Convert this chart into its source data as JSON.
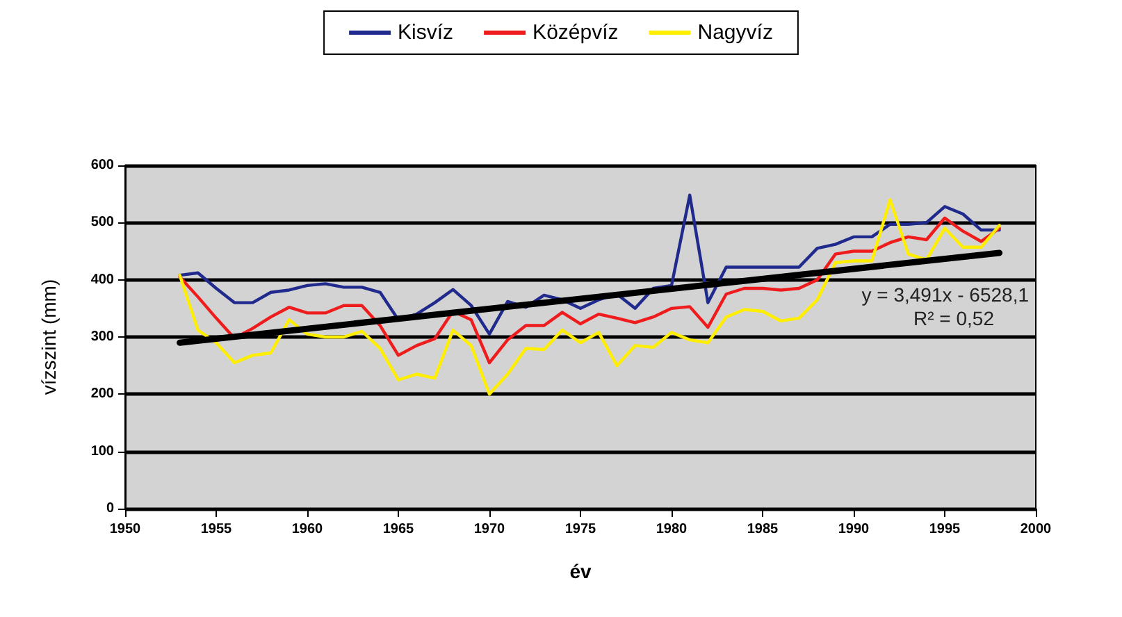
{
  "chart_data": {
    "type": "line",
    "xlabel": "év",
    "ylabel": "vízszint (mm)",
    "x": [
      1953,
      1954,
      1955,
      1956,
      1957,
      1958,
      1959,
      1960,
      1961,
      1962,
      1963,
      1964,
      1965,
      1966,
      1967,
      1968,
      1969,
      1970,
      1971,
      1972,
      1973,
      1974,
      1975,
      1976,
      1977,
      1978,
      1979,
      1980,
      1981,
      1982,
      1983,
      1984,
      1985,
      1986,
      1987,
      1988,
      1989,
      1990,
      1991,
      1992,
      1993,
      1994,
      1995,
      1996,
      1997,
      1998
    ],
    "series": [
      {
        "name": "Kisvíz",
        "color": "#1f2a8c",
        "values": [
          408,
          412,
          385,
          360,
          360,
          378,
          382,
          390,
          393,
          387,
          387,
          378,
          330,
          340,
          360,
          383,
          355,
          305,
          362,
          352,
          373,
          365,
          350,
          365,
          375,
          350,
          385,
          390,
          548,
          360,
          422,
          422,
          422,
          422,
          422,
          455,
          462,
          475,
          475,
          497,
          497,
          500,
          528,
          515,
          487,
          487
        ]
      },
      {
        "name": "Középvíz",
        "color": "#ee1c1c",
        "values": [
          405,
          370,
          333,
          298,
          315,
          335,
          352,
          342,
          342,
          355,
          355,
          320,
          268,
          285,
          297,
          345,
          330,
          255,
          295,
          320,
          320,
          343,
          323,
          340,
          333,
          325,
          335,
          350,
          353,
          317,
          375,
          385,
          385,
          382,
          385,
          400,
          445,
          450,
          450,
          465,
          475,
          470,
          508,
          485,
          467,
          490
        ]
      },
      {
        "name": "Nagyvíz",
        "color": "#ffee00",
        "values": [
          408,
          312,
          290,
          255,
          268,
          272,
          330,
          305,
          300,
          300,
          310,
          280,
          225,
          235,
          228,
          312,
          285,
          200,
          235,
          280,
          278,
          312,
          290,
          308,
          250,
          285,
          282,
          308,
          295,
          290,
          335,
          348,
          345,
          328,
          333,
          365,
          430,
          433,
          433,
          540,
          445,
          435,
          490,
          457,
          457,
          495
        ]
      },
      {
        "type": "line",
        "color": "#000000",
        "x": [
          1953,
          1998
        ],
        "values": [
          290,
          447
        ]
      }
    ],
    "xlim": [
      1950,
      2000
    ],
    "xticks": [
      1950,
      1955,
      1960,
      1965,
      1970,
      1975,
      1980,
      1985,
      1990,
      1995,
      2000
    ],
    "ylim": [
      0,
      600
    ],
    "yticks": [
      0,
      100,
      200,
      300,
      400,
      500,
      600
    ],
    "grid": "y",
    "legend": "top",
    "marker": "none",
    "line_style": "solid",
    "annotations": [
      "y = 3,491x - 6528,1",
      "R² = 0,52"
    ]
  }
}
